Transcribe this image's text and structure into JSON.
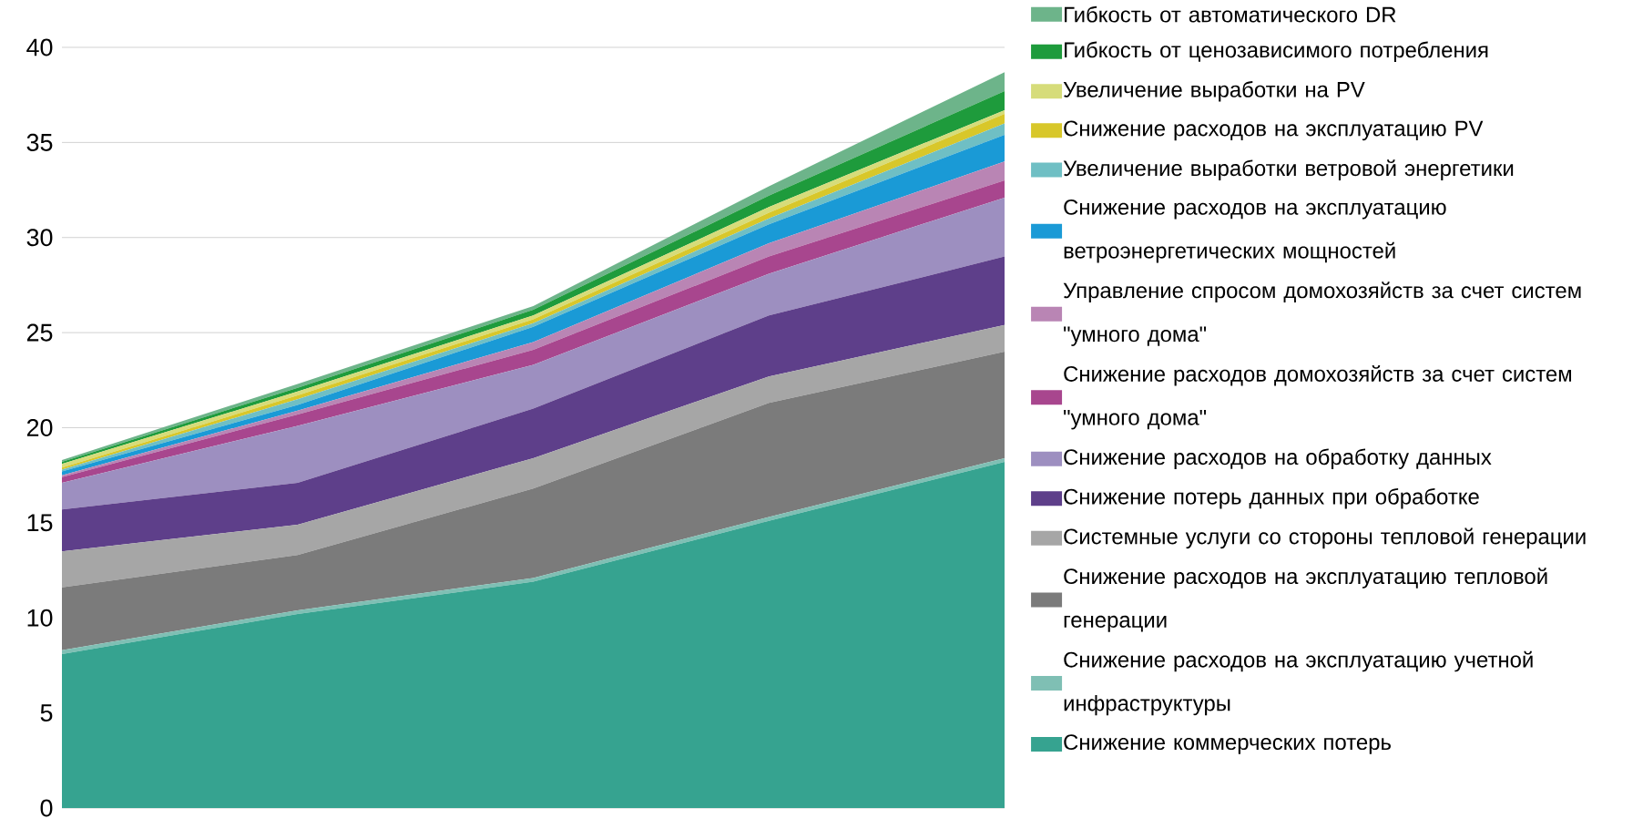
{
  "chart_data": {
    "type": "area",
    "stacked": true,
    "categories": [
      null,
      null,
      null,
      null,
      null
    ],
    "ylim": [
      0,
      40
    ],
    "yticks": [
      0,
      5,
      10,
      15,
      20,
      25,
      30,
      35,
      40
    ],
    "grid": "y",
    "legend": "right",
    "series": [
      {
        "name": "Снижение коммерческих потерь",
        "color": "#36a390",
        "values": [
          8.1,
          10.2,
          11.9,
          15.1,
          18.2
        ]
      },
      {
        "name": "Снижение расходов на эксплуатацию учетной инфраструктуры",
        "color": "#7fbfb4",
        "values": [
          0.2,
          0.2,
          0.2,
          0.2,
          0.2
        ]
      },
      {
        "name": "Снижение расходов на эксплуатацию тепловой генерации",
        "color": "#7b7b7b",
        "values": [
          3.3,
          2.9,
          4.7,
          6.0,
          5.6
        ]
      },
      {
        "name": "Системные услуги со стороны тепловой генерации",
        "color": "#a6a6a6",
        "values": [
          1.9,
          1.6,
          1.6,
          1.4,
          1.4
        ]
      },
      {
        "name": "Снижение потерь данных при обработке",
        "color": "#5e3f8a",
        "values": [
          2.2,
          2.2,
          2.6,
          3.2,
          3.6
        ]
      },
      {
        "name": "Снижение расходов на обработку данных",
        "color": "#9d8fc0",
        "values": [
          1.4,
          3.0,
          2.3,
          2.2,
          3.1
        ]
      },
      {
        "name": "Снижение расходов домохозяйств за счет систем \"умного дома\"",
        "color": "#a8468e",
        "values": [
          0.3,
          0.6,
          0.8,
          0.9,
          0.9
        ]
      },
      {
        "name": "Управление спросом домохозяйств за счет систем \"умного дома\"",
        "color": "#b985b4",
        "values": [
          0.1,
          0.2,
          0.4,
          0.7,
          1.0
        ]
      },
      {
        "name": "Снижение расходов на эксплуатацию ветроэнергетических мощностей",
        "color": "#1a9ad6",
        "values": [
          0.2,
          0.3,
          0.8,
          1.0,
          1.4
        ]
      },
      {
        "name": "Увеличение выработки ветровой энергетики",
        "color": "#6fbfc4",
        "values": [
          0.1,
          0.3,
          0.2,
          0.3,
          0.6
        ]
      },
      {
        "name": "Снижение расходов на эксплуатацию PV",
        "color": "#d8c72a",
        "values": [
          0.1,
          0.2,
          0.2,
          0.3,
          0.5
        ]
      },
      {
        "name": "Увеличение выработки на PV",
        "color": "#d6dc7a",
        "values": [
          0.2,
          0.2,
          0.2,
          0.3,
          0.2
        ]
      },
      {
        "name": "Гибкость от ценозависимого потребления",
        "color": "#1e9b3c",
        "values": [
          0.1,
          0.2,
          0.3,
          0.6,
          1.0
        ]
      },
      {
        "name": "Гибкость от автоматического DR",
        "color": "#6db48a",
        "values": [
          0.1,
          0.2,
          0.2,
          0.5,
          1.0
        ]
      }
    ]
  }
}
